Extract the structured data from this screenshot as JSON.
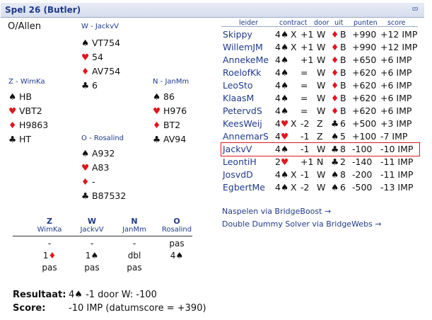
{
  "header": {
    "title": "Spel 26 (Butler)",
    "collapse_icon": "double-chevron-up-icon"
  },
  "dealer_vuln": "O/Allen",
  "hands": {
    "west": {
      "label": "W - JackvV",
      "spades": "VT754",
      "hearts": "54",
      "diamonds": "AV754",
      "clubs": "6"
    },
    "south": {
      "label": "Z - WimKa",
      "spades": "HB",
      "hearts": "VBT2",
      "diamonds": "H9863",
      "clubs": "HT"
    },
    "north": {
      "label": "N - JanMm",
      "spades": "86",
      "hearts": "H976",
      "diamonds": "BT2",
      "clubs": "AV94"
    },
    "east": {
      "label": "O - Rosalind",
      "spades": "A932",
      "hearts": "A83",
      "diamonds": "-",
      "clubs": "B87532"
    }
  },
  "results": {
    "headers": [
      "leider",
      "contract",
      "door",
      "uit",
      "punten",
      "score"
    ],
    "rows": [
      {
        "name": "Skippy",
        "level": "4",
        "suit": "♠",
        "suit_color": "black",
        "dbl": "X",
        "result": "+1",
        "by": "W",
        "lead_suit": "♦",
        "lead_color": "red",
        "lead": "B",
        "points": "+990",
        "score": "+12 IMP"
      },
      {
        "name": "WillemJM",
        "level": "4",
        "suit": "♠",
        "suit_color": "black",
        "dbl": "X",
        "result": "+1",
        "by": "W",
        "lead_suit": "♦",
        "lead_color": "red",
        "lead": "B",
        "points": "+990",
        "score": "+12 IMP"
      },
      {
        "name": "AnnekeMe",
        "level": "4",
        "suit": "♠",
        "suit_color": "black",
        "dbl": "",
        "result": "+1",
        "by": "W",
        "lead_suit": "♦",
        "lead_color": "red",
        "lead": "B",
        "points": "+650",
        "score": "+6 IMP"
      },
      {
        "name": "RoelofKk",
        "level": "4",
        "suit": "♠",
        "suit_color": "black",
        "dbl": "",
        "result": "=",
        "by": "W",
        "lead_suit": "♦",
        "lead_color": "red",
        "lead": "B",
        "points": "+620",
        "score": "+6 IMP"
      },
      {
        "name": "LeoSto",
        "level": "4",
        "suit": "♠",
        "suit_color": "black",
        "dbl": "",
        "result": "=",
        "by": "W",
        "lead_suit": "♦",
        "lead_color": "red",
        "lead": "B",
        "points": "+620",
        "score": "+6 IMP"
      },
      {
        "name": "KlaasM",
        "level": "4",
        "suit": "♠",
        "suit_color": "black",
        "dbl": "",
        "result": "=",
        "by": "W",
        "lead_suit": "♦",
        "lead_color": "red",
        "lead": "B",
        "points": "+620",
        "score": "+6 IMP"
      },
      {
        "name": "PetervdS",
        "level": "4",
        "suit": "♠",
        "suit_color": "black",
        "dbl": "",
        "result": "=",
        "by": "W",
        "lead_suit": "♦",
        "lead_color": "red",
        "lead": "B",
        "points": "+620",
        "score": "+6 IMP"
      },
      {
        "name": "KeesWeij",
        "level": "4",
        "suit": "♥",
        "suit_color": "red",
        "dbl": "X",
        "result": "-2",
        "by": "Z",
        "lead_suit": "♣",
        "lead_color": "black",
        "lead": "6",
        "points": "+500",
        "score": "+3 IMP"
      },
      {
        "name": "AnnemarS",
        "level": "4",
        "suit": "♥",
        "suit_color": "red",
        "dbl": "",
        "result": "-1",
        "by": "Z",
        "lead_suit": "♠",
        "lead_color": "black",
        "lead": "5",
        "points": "+100",
        "score": "-7 IMP"
      },
      {
        "name": "JackvV",
        "level": "4",
        "suit": "♠",
        "suit_color": "black",
        "dbl": "",
        "result": "-1",
        "by": "W",
        "lead_suit": "♣",
        "lead_color": "black",
        "lead": "8",
        "points": "-100",
        "score": "-10 IMP",
        "highlight": true
      },
      {
        "name": "LeontiH",
        "level": "2",
        "suit": "♥",
        "suit_color": "red",
        "dbl": "",
        "result": "+1",
        "by": "N",
        "lead_suit": "♣",
        "lead_color": "black",
        "lead": "2",
        "points": "-140",
        "score": "-11 IMP"
      },
      {
        "name": "JosvdD",
        "level": "4",
        "suit": "♠",
        "suit_color": "black",
        "dbl": "X",
        "result": "-1",
        "by": "W",
        "lead_suit": "♠",
        "lead_color": "black",
        "lead": "8",
        "points": "-200",
        "score": "-11 IMP"
      },
      {
        "name": "EgbertMe",
        "level": "4",
        "suit": "♠",
        "suit_color": "black",
        "dbl": "X",
        "result": "-2",
        "by": "W",
        "lead_suit": "♠",
        "lead_color": "black",
        "lead": "6",
        "points": "-500",
        "score": "-13 IMP"
      }
    ]
  },
  "links": {
    "bridgeboost": "Naspelen via BridgeBoost →",
    "dds": "Double Dummy Solver via BridgeWebs →"
  },
  "bidding": {
    "columns": [
      {
        "dir": "Z",
        "name": "WimKa"
      },
      {
        "dir": "W",
        "name": "JackvV"
      },
      {
        "dir": "N",
        "name": "JanMm"
      },
      {
        "dir": "O",
        "name": "Rosalind"
      }
    ],
    "rows": [
      [
        {
          "t": "-"
        },
        {
          "t": "-"
        },
        {
          "t": "-"
        },
        {
          "t": "pas"
        }
      ],
      [
        {
          "t": "1",
          "s": "♦",
          "c": "red"
        },
        {
          "t": "1",
          "s": "♠",
          "c": "black"
        },
        {
          "t": "dbl"
        },
        {
          "t": "4",
          "s": "♠",
          "c": "black"
        }
      ],
      [
        {
          "t": "pas"
        },
        {
          "t": "pas"
        },
        {
          "t": "pas"
        },
        {
          "t": ""
        }
      ]
    ]
  },
  "summary": {
    "result_label": "Resultaat:",
    "result_level": "4",
    "result_suit": "♠",
    "result_text": "-1 door W: -100",
    "score_label": "Score:",
    "score_text": "-10 IMP (datumscore = +390)"
  }
}
